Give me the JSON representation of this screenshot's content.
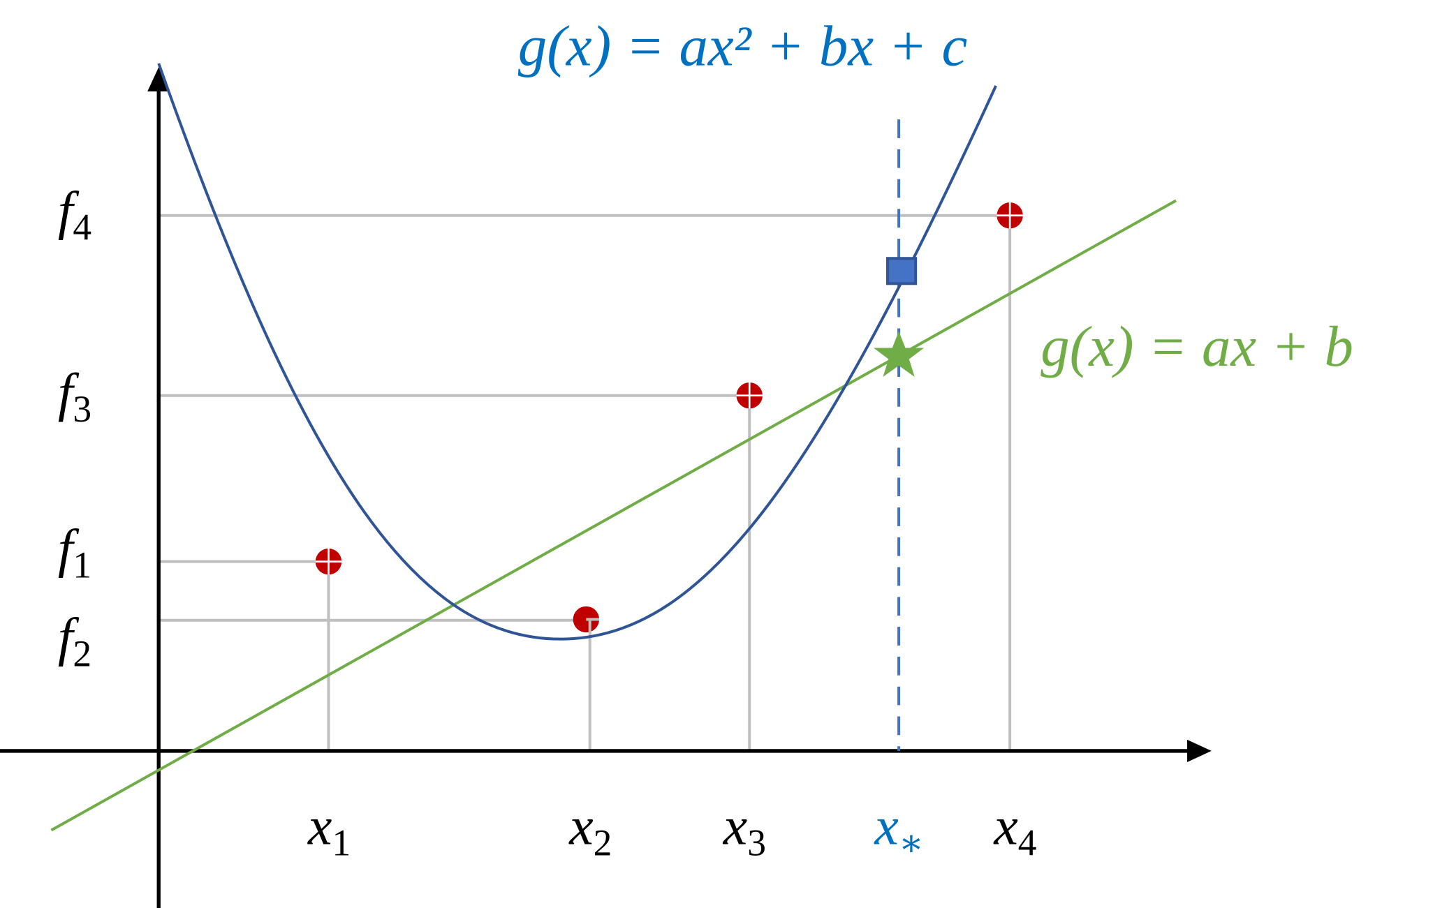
{
  "equations": {
    "quadratic": "g(x) = ax² + bx + c",
    "linear": "g(x) = ax + b"
  },
  "y_labels": [
    {
      "base": "f",
      "sub": "4"
    },
    {
      "base": "f",
      "sub": "3"
    },
    {
      "base": "f",
      "sub": "1"
    },
    {
      "base": "f",
      "sub": "2"
    }
  ],
  "x_labels": [
    {
      "base": "x",
      "sub": "1"
    },
    {
      "base": "x",
      "sub": "2"
    },
    {
      "base": "x",
      "sub": "3"
    },
    {
      "base": "x",
      "sub": "∗"
    },
    {
      "base": "x",
      "sub": "4"
    }
  ]
}
